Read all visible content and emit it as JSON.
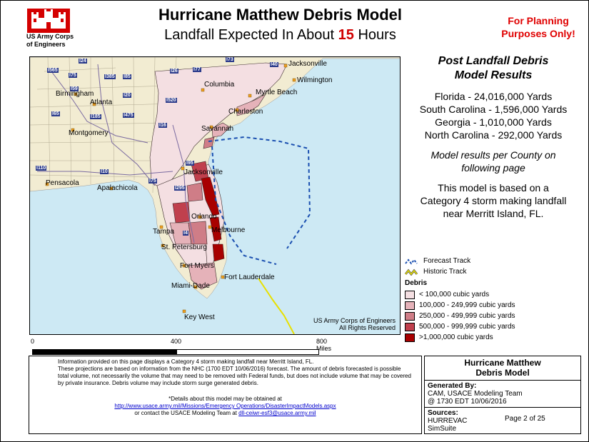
{
  "header": {
    "agency_line1": "US Army Corps",
    "agency_line2": "of Engineers",
    "title": "Hurricane Matthew Debris Model",
    "subtitle_prefix": "Landfall Expected In About",
    "subtitle_hours": "15",
    "subtitle_suffix": "Hours",
    "planning_line1": "For Planning",
    "planning_line2": "Purposes Only!"
  },
  "colors": {
    "ocean": "#cde9f4",
    "land": "#f2ecd2",
    "debris_1": "#f4dfe2",
    "debris_2": "#e5b2b9",
    "debris_3": "#cf7d87",
    "debris_4": "#c0404d",
    "debris_5": "#a80000",
    "forecast_track": "#1a4fb0",
    "historic_track": "#e8e000",
    "planning_red": "#e00000"
  },
  "results": {
    "title_line1": "Post Landfall Debris",
    "title_line2": "Model Results",
    "states": [
      "Florida - 24,016,000 Yards",
      "South Carolina - 1,596,000 Yards",
      "Georgia - 1,010,000 Yards",
      "North Carolina - 292,000 Yards"
    ],
    "note_line1": "Model results per County on",
    "note_line2": "following page",
    "model_line1": "This model is based on a",
    "model_line2": "Category 4 storm making landfall",
    "model_line3": "near Merritt Island, FL."
  },
  "legend": {
    "forecast_track": "Forecast Track",
    "historic_track": "Historic Track",
    "debris_title": "Debris",
    "classes": [
      "< 100,000 cubic yards",
      "100,000 - 249,999 cubic yards",
      "250,000 - 499,999  cubic yards",
      "500,000 - 999,999 cubic yards",
      ">1,000,000 cubic yards"
    ]
  },
  "map": {
    "cities": [
      "Jacksonville",
      "Wilmington",
      "Columbia",
      "Myrtle Beach",
      "Birmingham",
      "Atlanta",
      "Charleston",
      "Montgomery",
      "Savannah",
      "Jacksonville",
      "Pensacola",
      "Apalachicola",
      "Orlando",
      "Melbourne",
      "Tampa",
      "St. Petersburg",
      "Fort Myers",
      "Fort Lauderdale",
      "Miami-Dade",
      "Key West"
    ],
    "interstates": [
      "I565",
      "I24",
      "I75",
      "I85",
      "I385",
      "I26",
      "I77",
      "I73",
      "I40",
      "I59",
      "I20",
      "I520",
      "I65",
      "I185",
      "I475",
      "I16",
      "I110",
      "I10",
      "I75",
      "I95",
      "I295",
      "I4"
    ],
    "copyright_line1": "US Army Corps of Engineers",
    "copyright_line2": "All Rights Reserved"
  },
  "scale": {
    "labels": [
      "0",
      "400",
      "800 Miles"
    ]
  },
  "info": {
    "para1": "Information provided on this page displays a Category 4 storm making landfall near Merritt Island, FL.",
    "para2": "These projections are based on information from the NHC (1700 EDT  10/06/2016) forecast.  The amount of debris forecasted is possible total volume, not necessarily the volume that may need to be removed with Federal funds, but does not include volume that may be covered by private insurance.  Debris volume may include storm surge generated debris.",
    "details": "*Details about this model may be obtained at",
    "url": "http://www.usace.army.mil/Missions/Emergency Operations/DisasterImpactModels.aspx",
    "contact_prefix": "or contact the USACE Modeling Team at",
    "email": "dll-ceiwr-esf3@usace.army.mil"
  },
  "titlebox": {
    "line1": "Hurricane Matthew",
    "line2": "Debris Model",
    "generated_label": "Generated By:",
    "generated_line1": "CAM, USACE Modeling Team",
    "generated_line2": "@  1730 EDT  10/06/2016",
    "sources_label": "Sources:",
    "source1": "HURREVAC",
    "source2": "SimSuite",
    "page": "Page 2 of 25"
  }
}
